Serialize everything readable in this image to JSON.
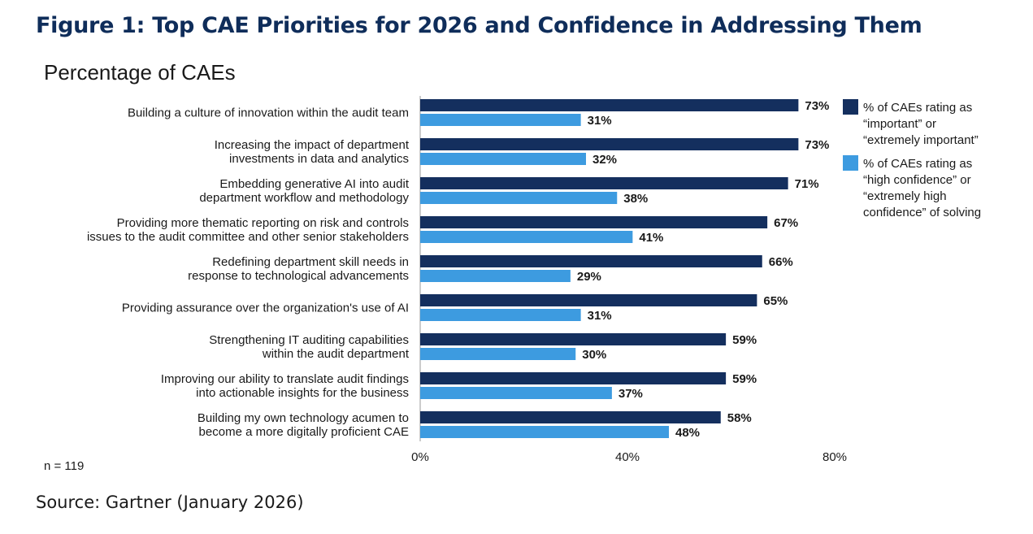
{
  "page": {
    "title": "Figure 1: Top CAE Priorities for 2026 and Confidence in Addressing Them",
    "source": "Source: Gartner (January 2026)"
  },
  "colors": {
    "title": "#0f2d5a",
    "important": "#142f5e",
    "confidence": "#3d9be0",
    "text": "#1a1a1a"
  },
  "chart_data": {
    "type": "bar",
    "orientation": "horizontal",
    "title": "Percentage of CAEs",
    "note": "n = 119",
    "categories": [
      [
        "Building a culture of innovation within the audit team"
      ],
      [
        "Increasing the impact of department",
        "investments in data and analytics"
      ],
      [
        "Embedding generative AI into audit",
        "department workflow and methodology"
      ],
      [
        "Providing more thematic reporting on risk and controls",
        "issues to the audit committee and other senior stakeholders"
      ],
      [
        "Redefining department skill needs in",
        "response to technological advancements"
      ],
      [
        "Providing assurance over the organization's use of AI"
      ],
      [
        "Strengthening IT auditing capabilities",
        "within the audit department"
      ],
      [
        "Improving our ability to translate audit findings",
        "into actionable insights for the business"
      ],
      [
        "Building my own technology acumen to",
        "become a more digitally proficient CAE"
      ]
    ],
    "series": [
      {
        "name": "% of CAEs rating as “important” or “extremely important”",
        "legend_lines": [
          "% of CAEs rating as",
          "“important” or",
          "“extremely important”"
        ],
        "color": "#142f5e",
        "values": [
          73,
          73,
          71,
          67,
          66,
          65,
          59,
          59,
          58
        ]
      },
      {
        "name": "% of CAEs rating as “high confidence” or “extremely high confidence” of solving",
        "legend_lines": [
          "% of CAEs rating as",
          "“high confidence” or",
          "“extremely high",
          "confidence” of solving"
        ],
        "color": "#3d9be0",
        "values": [
          31,
          32,
          38,
          41,
          29,
          31,
          30,
          37,
          48
        ]
      }
    ],
    "xlim": [
      0,
      80
    ],
    "xticks": [
      0,
      40,
      80
    ],
    "value_suffix": "%",
    "legend_position": "right"
  }
}
